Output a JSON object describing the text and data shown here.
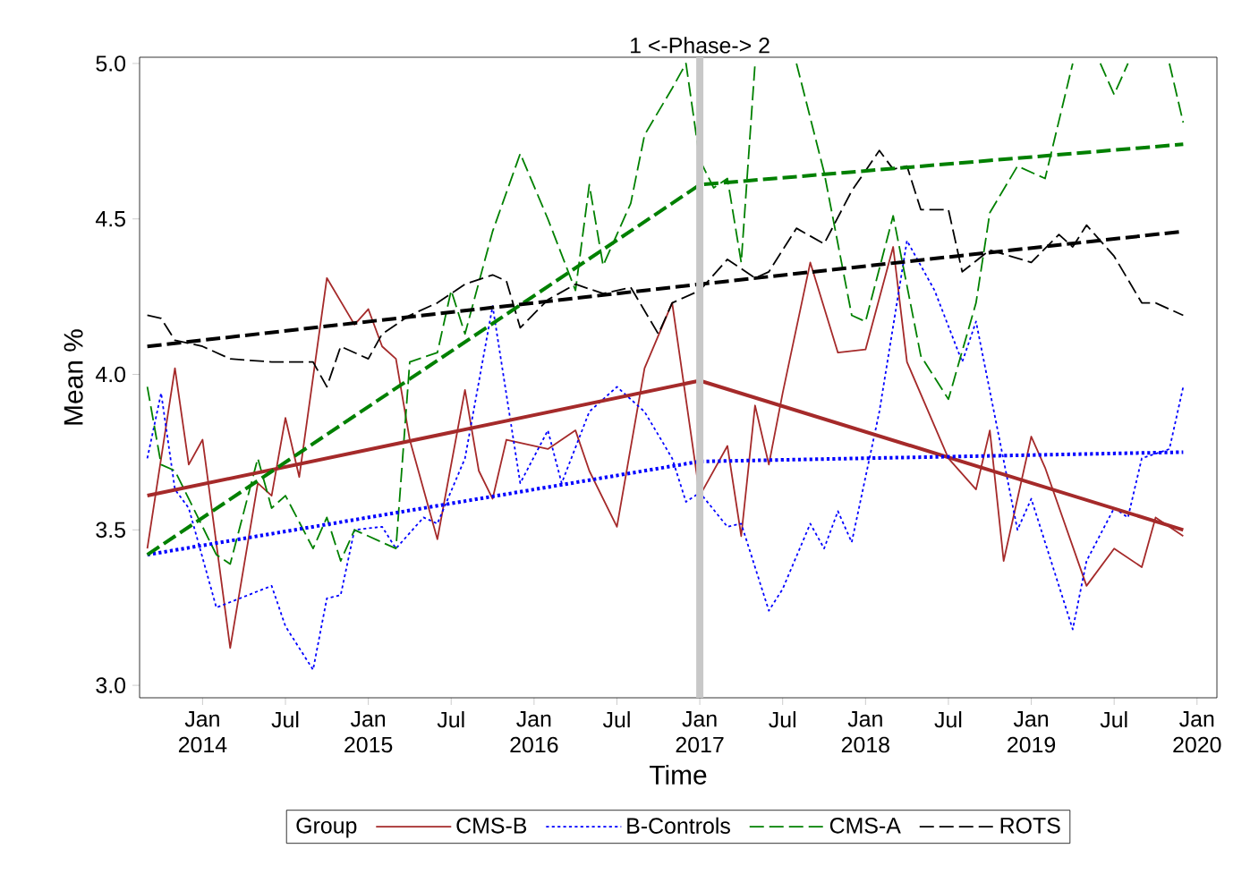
{
  "chart_data": {
    "type": "line",
    "xlabel": "Time",
    "ylabel": "Mean %",
    "legend_title": "Group",
    "legend": "bottom",
    "xlim": [
      "2013-08-15",
      "2020-02-15"
    ],
    "ylim": [
      2.96,
      5.02
    ],
    "xticks": [
      {
        "value": "2014-01",
        "label": "Jan 2014"
      },
      {
        "value": "2014-07",
        "label": "Jul"
      },
      {
        "value": "2015-01",
        "label": "Jan 2015"
      },
      {
        "value": "2015-07",
        "label": "Jul"
      },
      {
        "value": "2016-01",
        "label": "Jan 2016"
      },
      {
        "value": "2016-07",
        "label": "Jul"
      },
      {
        "value": "2017-01",
        "label": "Jan 2017"
      },
      {
        "value": "2017-07",
        "label": "Jul"
      },
      {
        "value": "2018-01",
        "label": "Jan 2018"
      },
      {
        "value": "2018-07",
        "label": "Jul"
      },
      {
        "value": "2019-01",
        "label": "Jan 2019"
      },
      {
        "value": "2019-07",
        "label": "Jul"
      },
      {
        "value": "2020-01",
        "label": "Jan 2020"
      }
    ],
    "yticks": [
      {
        "value": 3,
        "label": "3.0"
      },
      {
        "value": 3.5,
        "label": "3.5"
      },
      {
        "value": 4,
        "label": "4.0"
      },
      {
        "value": 4.5,
        "label": "4.5"
      },
      {
        "value": 5,
        "label": "5.0"
      }
    ],
    "ref_lines": [
      {
        "axis": "x",
        "value": "2017-01",
        "label": "1 <-Phase-> 2",
        "color": "#c8c8c8"
      }
    ],
    "series": [
      {
        "name": "CMS-B",
        "color": "#a52a2a",
        "line_style": "solid",
        "x": [
          "2013-09",
          "2013-11",
          "2013-12",
          "2014-01",
          "2014-03",
          "2014-05",
          "2014-06",
          "2014-07",
          "2014-08",
          "2014-10",
          "2014-12",
          "2015-01",
          "2015-02",
          "2015-03",
          "2015-04",
          "2015-06",
          "2015-08",
          "2015-09",
          "2015-10",
          "2015-11",
          "2016-02",
          "2016-04",
          "2016-05",
          "2016-07",
          "2016-09",
          "2016-11",
          "2017-01",
          "2017-03",
          "2017-04",
          "2017-05",
          "2017-06",
          "2017-07",
          "2017-09",
          "2017-11",
          "2018-01",
          "2018-03",
          "2018-04",
          "2018-07",
          "2018-09",
          "2018-10",
          "2018-11",
          "2019-01",
          "2019-02",
          "2019-05",
          "2019-07",
          "2019-09",
          "2019-10",
          "2019-12"
        ],
        "values": [
          3.44,
          4.02,
          3.71,
          3.79,
          3.12,
          3.65,
          3.61,
          3.86,
          3.67,
          4.31,
          4.16,
          4.21,
          4.09,
          4.05,
          3.79,
          3.47,
          3.95,
          3.69,
          3.6,
          3.79,
          3.76,
          3.82,
          3.69,
          3.51,
          4.02,
          4.23,
          3.61,
          3.77,
          3.48,
          3.9,
          3.71,
          3.94,
          4.36,
          4.07,
          4.08,
          4.41,
          4.04,
          3.73,
          3.63,
          3.82,
          3.4,
          3.8,
          3.7,
          3.32,
          3.44,
          3.38,
          3.54,
          3.48
        ]
      },
      {
        "name": "B-Controls",
        "color": "#0000ff",
        "line_style": "dotted",
        "x": [
          "2013-09",
          "2013-10",
          "2013-11",
          "2013-12",
          "2014-02",
          "2014-06",
          "2014-07",
          "2014-09",
          "2014-10",
          "2014-11",
          "2014-12",
          "2015-02",
          "2015-03",
          "2015-05",
          "2015-06",
          "2015-08",
          "2015-10",
          "2015-12",
          "2016-02",
          "2016-03",
          "2016-05",
          "2016-07",
          "2016-09",
          "2016-11",
          "2016-12",
          "2017-01",
          "2017-03",
          "2017-04",
          "2017-06",
          "2017-07",
          "2017-09",
          "2017-10",
          "2017-11",
          "2017-12",
          "2018-02",
          "2018-04",
          "2018-06",
          "2018-08",
          "2018-09",
          "2018-12",
          "2019-01",
          "2019-04",
          "2019-05",
          "2019-07",
          "2019-08",
          "2019-09",
          "2019-11",
          "2019-12"
        ],
        "values": [
          3.73,
          3.94,
          3.63,
          3.57,
          3.25,
          3.32,
          3.19,
          3.05,
          3.28,
          3.29,
          3.5,
          3.51,
          3.44,
          3.54,
          3.52,
          3.73,
          4.22,
          3.65,
          3.82,
          3.65,
          3.88,
          3.96,
          3.88,
          3.73,
          3.59,
          3.62,
          3.51,
          3.52,
          3.24,
          3.31,
          3.52,
          3.44,
          3.56,
          3.46,
          3.88,
          4.43,
          4.27,
          4.04,
          4.17,
          3.5,
          3.6,
          3.18,
          3.4,
          3.57,
          3.54,
          3.73,
          3.76,
          3.96
        ]
      },
      {
        "name": "CMS-A",
        "color": "#008000",
        "line_style": "dashed",
        "x": [
          "2013-09",
          "2013-10",
          "2013-11",
          "2014-02",
          "2014-03",
          "2014-05",
          "2014-06",
          "2014-07",
          "2014-09",
          "2014-10",
          "2014-11",
          "2014-12",
          "2015-03",
          "2015-04",
          "2015-06",
          "2015-07",
          "2015-08",
          "2015-10",
          "2015-12",
          "2016-02",
          "2016-04",
          "2016-05",
          "2016-06",
          "2016-08",
          "2016-09",
          "2016-11",
          "2016-12",
          "2017-01",
          "2017-02",
          "2017-03",
          "2017-04",
          "2017-05",
          "2017-06",
          "2017-08",
          "2017-10",
          "2017-12",
          "2018-01",
          "2018-03",
          "2018-05",
          "2018-07",
          "2018-09",
          "2018-10",
          "2018-12",
          "2019-02",
          "2019-04",
          "2019-05",
          "2019-06",
          "2019-07",
          "2019-08",
          "2019-10",
          "2019-11",
          "2019-12"
        ],
        "values": [
          3.96,
          3.71,
          3.69,
          3.42,
          3.39,
          3.73,
          3.57,
          3.61,
          3.44,
          3.54,
          3.4,
          3.5,
          3.44,
          4.04,
          4.07,
          4.27,
          4.13,
          4.46,
          4.71,
          4.5,
          4.27,
          4.61,
          4.35,
          4.55,
          4.77,
          4.92,
          5.0,
          4.69,
          4.6,
          4.63,
          4.36,
          5.0,
          null,
          5.0,
          4.65,
          4.19,
          4.17,
          4.51,
          4.06,
          3.92,
          4.23,
          4.52,
          4.67,
          4.63,
          5.0,
          null,
          5.0,
          4.9,
          5.0,
          null,
          5.0,
          4.81
        ]
      },
      {
        "name": "ROTS",
        "color": "#000000",
        "line_style": "dashed",
        "x": [
          "2013-09",
          "2013-10",
          "2013-11",
          "2014-01",
          "2014-03",
          "2014-06",
          "2014-09",
          "2014-10",
          "2014-11",
          "2015-01",
          "2015-02",
          "2015-04",
          "2015-06",
          "2015-08",
          "2015-10",
          "2015-11",
          "2015-12",
          "2016-02",
          "2016-04",
          "2016-06",
          "2016-08",
          "2016-10",
          "2016-11",
          "2017-01",
          "2017-03",
          "2017-05",
          "2017-06",
          "2017-08",
          "2017-10",
          "2017-12",
          "2018-02",
          "2018-03",
          "2018-04",
          "2018-05",
          "2018-07",
          "2018-08",
          "2018-10",
          "2019-01",
          "2019-03",
          "2019-04",
          "2019-05",
          "2019-07",
          "2019-09",
          "2019-10",
          "2019-12"
        ],
        "values": [
          4.19,
          4.18,
          4.11,
          4.09,
          4.05,
          4.04,
          4.04,
          3.96,
          4.09,
          4.05,
          4.13,
          4.19,
          4.23,
          4.29,
          4.32,
          4.3,
          4.15,
          4.24,
          4.29,
          4.26,
          4.28,
          4.13,
          4.23,
          4.27,
          4.37,
          4.31,
          4.33,
          4.47,
          4.42,
          4.59,
          4.72,
          4.66,
          4.67,
          4.53,
          4.53,
          4.33,
          4.4,
          4.36,
          4.45,
          4.41,
          4.48,
          4.38,
          4.23,
          4.23,
          4.19
        ]
      },
      {
        "type": "line",
        "color": "#a52a2a",
        "line_style": "solid",
        "x": [
          "2013-09",
          "2017-01",
          "2019-12"
        ],
        "values": [
          3.61,
          3.98,
          3.5
        ]
      },
      {
        "type": "line",
        "color": "#0000ff",
        "line_style": "dotted",
        "x": [
          "2013-09",
          "2017-01",
          "2019-12"
        ],
        "values": [
          3.42,
          3.72,
          3.75
        ]
      },
      {
        "type": "line",
        "color": "#008000",
        "line_style": "dashed",
        "x": [
          "2013-09",
          "2017-01",
          "2019-12"
        ],
        "values": [
          3.42,
          4.61,
          4.74
        ]
      },
      {
        "type": "line",
        "color": "#000000",
        "line_style": "dashed",
        "x": [
          "2013-09",
          "2017-01",
          "2019-12"
        ],
        "values": [
          4.09,
          4.29,
          4.46
        ]
      }
    ]
  }
}
